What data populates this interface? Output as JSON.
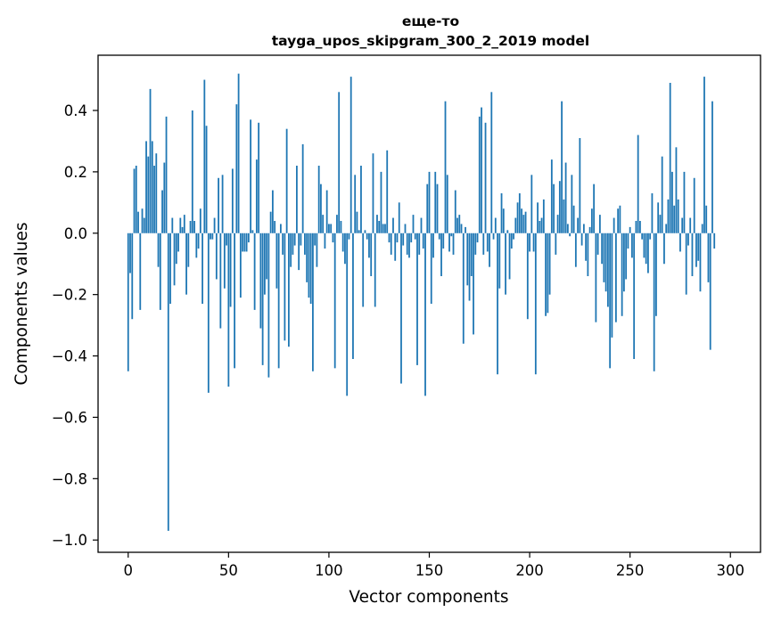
{
  "chart_data": {
    "type": "bar",
    "title_line1": "еще-то",
    "title_line2": "tayga_upos_skipgram_300_2_2019 model",
    "xlabel": "Vector components",
    "ylabel": "Components values",
    "xlim": [
      -15,
      315
    ],
    "ylim": [
      -1.04,
      0.58
    ],
    "bar_color": "#1f77b4",
    "grid": false,
    "x_ticks": [
      {
        "value": 0,
        "label": "0"
      },
      {
        "value": 50,
        "label": "50"
      },
      {
        "value": 100,
        "label": "100"
      },
      {
        "value": 150,
        "label": "150"
      },
      {
        "value": 200,
        "label": "200"
      },
      {
        "value": 250,
        "label": "250"
      },
      {
        "value": 300,
        "label": "300"
      }
    ],
    "y_ticks": [
      {
        "value": 0.4,
        "label": "0.4"
      },
      {
        "value": 0.2,
        "label": "0.2"
      },
      {
        "value": 0.0,
        "label": "0.0"
      },
      {
        "value": -0.2,
        "label": "−0.2"
      },
      {
        "value": -0.4,
        "label": "−0.4"
      },
      {
        "value": -0.6,
        "label": "−0.6"
      },
      {
        "value": -0.8,
        "label": "−0.8"
      },
      {
        "value": -1.0,
        "label": "−1.0"
      }
    ],
    "values": [
      -0.45,
      -0.13,
      -0.28,
      0.21,
      0.22,
      0.07,
      -0.25,
      0.08,
      0.05,
      0.3,
      0.25,
      0.47,
      0.3,
      0.22,
      0.26,
      -0.11,
      -0.25,
      0.14,
      0.23,
      0.38,
      -0.97,
      -0.23,
      0.05,
      -0.17,
      -0.1,
      -0.06,
      0.05,
      0.02,
      0.06,
      -0.2,
      -0.11,
      0.04,
      0.4,
      0.04,
      -0.08,
      -0.05,
      0.08,
      -0.23,
      0.5,
      0.35,
      -0.52,
      -0.02,
      -0.02,
      0.05,
      -0.15,
      0.18,
      -0.31,
      0.19,
      -0.18,
      -0.04,
      -0.5,
      -0.24,
      0.21,
      -0.44,
      0.42,
      0.52,
      -0.21,
      -0.06,
      -0.06,
      -0.06,
      -0.03,
      0.37,
      0.01,
      -0.25,
      0.24,
      0.36,
      -0.31,
      -0.43,
      -0.2,
      -0.15,
      -0.47,
      0.07,
      0.14,
      0.04,
      -0.18,
      -0.44,
      0.03,
      -0.07,
      -0.35,
      0.34,
      -0.37,
      -0.11,
      -0.07,
      -0.04,
      0.22,
      -0.12,
      -0.04,
      0.29,
      -0.07,
      -0.16,
      -0.21,
      -0.23,
      -0.45,
      -0.04,
      -0.11,
      0.22,
      0.16,
      0.06,
      -0.05,
      0.14,
      0.03,
      0.03,
      -0.03,
      -0.44,
      0.06,
      0.46,
      0.04,
      -0.06,
      -0.1,
      -0.53,
      -0.02,
      0.51,
      -0.41,
      0.19,
      0.07,
      0.01,
      0.22,
      -0.24,
      0.01,
      -0.02,
      -0.08,
      -0.14,
      0.26,
      -0.24,
      0.06,
      0.04,
      0.2,
      0.03,
      0.03,
      0.27,
      -0.03,
      -0.07,
      0.05,
      -0.09,
      -0.03,
      0.1,
      -0.49,
      -0.04,
      0.03,
      -0.07,
      -0.08,
      -0.03,
      0.06,
      -0.02,
      -0.43,
      -0.07,
      0.05,
      -0.05,
      -0.53,
      0.16,
      0.2,
      -0.23,
      -0.08,
      0.2,
      0.16,
      -0.02,
      -0.14,
      -0.05,
      0.43,
      0.19,
      -0.06,
      -0.01,
      -0.07,
      0.14,
      0.05,
      0.06,
      0.03,
      -0.36,
      0.02,
      -0.17,
      -0.22,
      -0.14,
      -0.33,
      -0.07,
      -0.03,
      0.38,
      0.41,
      -0.07,
      0.36,
      -0.06,
      -0.11,
      0.46,
      -0.02,
      0.05,
      -0.46,
      -0.18,
      0.13,
      0.08,
      -0.2,
      0.01,
      -0.15,
      -0.05,
      -0.02,
      0.05,
      0.1,
      0.13,
      0.08,
      0.06,
      0.07,
      -0.28,
      -0.06,
      0.19,
      -0.06,
      -0.46,
      0.1,
      0.04,
      0.05,
      0.11,
      -0.27,
      -0.26,
      -0.2,
      0.24,
      0.16,
      -0.07,
      0.06,
      0.17,
      0.43,
      0.11,
      0.23,
      0.03,
      -0.01,
      0.19,
      0.09,
      -0.11,
      0.05,
      0.31,
      -0.04,
      0.03,
      -0.09,
      -0.14,
      0.02,
      0.08,
      0.16,
      -0.29,
      -0.07,
      0.06,
      -0.1,
      -0.16,
      -0.19,
      -0.24,
      -0.44,
      -0.34,
      0.05,
      -0.29,
      0.08,
      0.09,
      -0.27,
      -0.19,
      -0.15,
      -0.05,
      0.02,
      -0.08,
      -0.41,
      0.04,
      0.32,
      0.04,
      -0.02,
      -0.08,
      -0.1,
      -0.13,
      -0.02,
      0.13,
      -0.45,
      -0.27,
      0.1,
      0.06,
      0.25,
      -0.1,
      0.03,
      0.11,
      0.49,
      0.2,
      0.09,
      0.28,
      0.11,
      -0.06,
      0.05,
      0.2,
      -0.2,
      -0.04,
      0.05,
      -0.14,
      0.18,
      -0.11,
      -0.09,
      -0.19,
      0.03,
      0.51,
      0.09,
      -0.16,
      -0.38,
      0.43,
      -0.05
    ]
  }
}
